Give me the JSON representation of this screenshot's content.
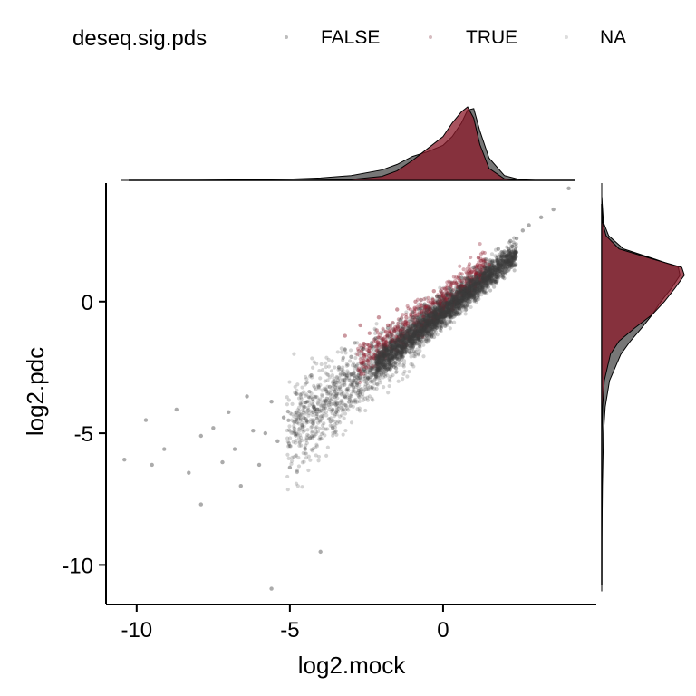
{
  "chart_data": {
    "type": "scatter",
    "xlabel": "log2.mock",
    "ylabel": "log2.pdc",
    "xlim": [
      -11,
      5
    ],
    "ylim": [
      -11.5,
      4.5
    ],
    "x_ticks": [
      -10,
      -5,
      0
    ],
    "y_ticks": [
      -10,
      -5,
      0
    ],
    "x_tick_labels": [
      "-10",
      "-5",
      "0"
    ],
    "y_tick_labels": [
      "-10",
      "-5",
      "0"
    ],
    "grid": false,
    "legend": {
      "title": "deseq.sig.pds",
      "placement": "top",
      "entries": [
        "FALSE",
        "TRUE",
        "NA"
      ]
    },
    "colors": {
      "FALSE": "#444444",
      "TRUE": "#8b1a2a"
    },
    "series": [
      {
        "name": "FALSE",
        "points": [
          [
            -10.4,
            -6.0
          ],
          [
            -9.7,
            -4.5
          ],
          [
            -9.5,
            -6.2
          ],
          [
            -9.1,
            -5.6
          ],
          [
            -8.7,
            -4.1
          ],
          [
            -8.3,
            -6.5
          ],
          [
            -7.9,
            -5.1
          ],
          [
            -7.9,
            -7.7
          ],
          [
            -7.5,
            -4.8
          ],
          [
            -7.2,
            -6.1
          ],
          [
            -7.0,
            -4.2
          ],
          [
            -6.8,
            -5.6
          ],
          [
            -6.6,
            -7.0
          ],
          [
            -6.4,
            -3.6
          ],
          [
            -6.2,
            -4.9
          ],
          [
            -6.0,
            -6.2
          ],
          [
            -5.8,
            -5.0
          ],
          [
            -5.6,
            -3.8
          ],
          [
            -5.6,
            -10.9
          ],
          [
            -5.4,
            -5.3
          ],
          [
            -5.2,
            -4.4
          ],
          [
            -5.0,
            -6.3
          ],
          [
            -4.8,
            -3.5
          ],
          [
            -4.6,
            -4.7
          ],
          [
            -4.5,
            -5.6
          ],
          [
            -4.3,
            -2.8
          ],
          [
            -4.1,
            -4.1
          ],
          [
            -4.0,
            -9.5
          ],
          [
            -3.8,
            -3.4
          ],
          [
            -3.6,
            -4.8
          ],
          [
            -3.4,
            -2.5
          ],
          [
            -3.2,
            -3.6
          ],
          [
            -3.0,
            -2.1
          ],
          [
            -2.8,
            -3.1
          ],
          [
            -2.6,
            -1.8
          ],
          [
            -2.4,
            -2.6
          ],
          [
            -2.2,
            -1.4
          ],
          [
            -2.0,
            -2.2
          ],
          [
            -1.8,
            -1.0
          ],
          [
            -1.6,
            -1.7
          ],
          [
            -1.4,
            -0.7
          ],
          [
            -1.2,
            -1.3
          ],
          [
            -1.0,
            -0.4
          ],
          [
            -0.8,
            -0.9
          ],
          [
            -0.6,
            -0.1
          ],
          [
            -0.4,
            -0.5
          ],
          [
            -0.2,
            0.2
          ],
          [
            0.0,
            -0.1
          ],
          [
            0.2,
            0.5
          ],
          [
            0.4,
            0.3
          ],
          [
            0.6,
            0.9
          ],
          [
            0.8,
            0.7
          ],
          [
            1.0,
            1.3
          ],
          [
            1.2,
            1.1
          ],
          [
            1.4,
            1.6
          ],
          [
            1.6,
            1.5
          ],
          [
            1.8,
            2.0
          ],
          [
            2.0,
            1.9
          ],
          [
            2.2,
            2.3
          ],
          [
            2.4,
            2.4
          ],
          [
            2.6,
            2.7
          ],
          [
            2.8,
            2.9
          ],
          [
            3.2,
            3.2
          ],
          [
            3.6,
            3.5
          ],
          [
            4.1,
            4.3
          ]
        ]
      },
      {
        "name": "TRUE",
        "points": [
          [
            -3.2,
            -1.3
          ],
          [
            -2.7,
            -0.9
          ],
          [
            -2.4,
            -1.2
          ],
          [
            -2.1,
            -0.6
          ],
          [
            -1.8,
            -0.9
          ],
          [
            -1.5,
            -0.3
          ],
          [
            -1.2,
            -0.6
          ],
          [
            -0.9,
            0.0
          ],
          [
            -0.6,
            -0.2
          ],
          [
            -0.3,
            0.4
          ],
          [
            0.0,
            0.2
          ],
          [
            0.3,
            0.7
          ],
          [
            0.6,
            0.6
          ],
          [
            0.9,
            1.1
          ],
          [
            1.2,
            1.0
          ],
          [
            1.5,
            1.4
          ]
        ]
      }
    ],
    "marginal_x": {
      "x": [
        -10.5,
        -8,
        -6,
        -5,
        -4,
        -3,
        -2,
        -1.5,
        -1,
        -0.5,
        0,
        0.3,
        0.6,
        0.8,
        1.0,
        1.2,
        1.5,
        2,
        2.5,
        3,
        4,
        4.2
      ],
      "FALSE": [
        0,
        0.002,
        0.008,
        0.015,
        0.03,
        0.06,
        0.13,
        0.2,
        0.3,
        0.36,
        0.44,
        0.55,
        0.72,
        0.88,
        0.9,
        0.62,
        0.28,
        0.06,
        0.01,
        0,
        0,
        0
      ],
      "TRUE": [
        0,
        0,
        0,
        0,
        0.003,
        0.012,
        0.05,
        0.12,
        0.25,
        0.4,
        0.55,
        0.72,
        0.86,
        0.92,
        0.78,
        0.45,
        0.15,
        0.02,
        0,
        0,
        0,
        0
      ]
    },
    "marginal_y": {
      "y": [
        -11,
        -9,
        -7,
        -5,
        -4,
        -3,
        -2,
        -1.5,
        -1,
        -0.5,
        0,
        0.5,
        1,
        1.3,
        1.6,
        2,
        2.5,
        3,
        4,
        4.5
      ],
      "FALSE": [
        0,
        0.002,
        0.008,
        0.02,
        0.04,
        0.09,
        0.22,
        0.33,
        0.46,
        0.58,
        0.68,
        0.8,
        0.9,
        0.88,
        0.62,
        0.25,
        0.08,
        0.02,
        0,
        0
      ],
      "TRUE": [
        0,
        0,
        0,
        0.002,
        0.01,
        0.03,
        0.1,
        0.2,
        0.38,
        0.58,
        0.72,
        0.84,
        0.95,
        0.92,
        0.6,
        0.2,
        0.05,
        0.01,
        0,
        0
      ]
    }
  }
}
